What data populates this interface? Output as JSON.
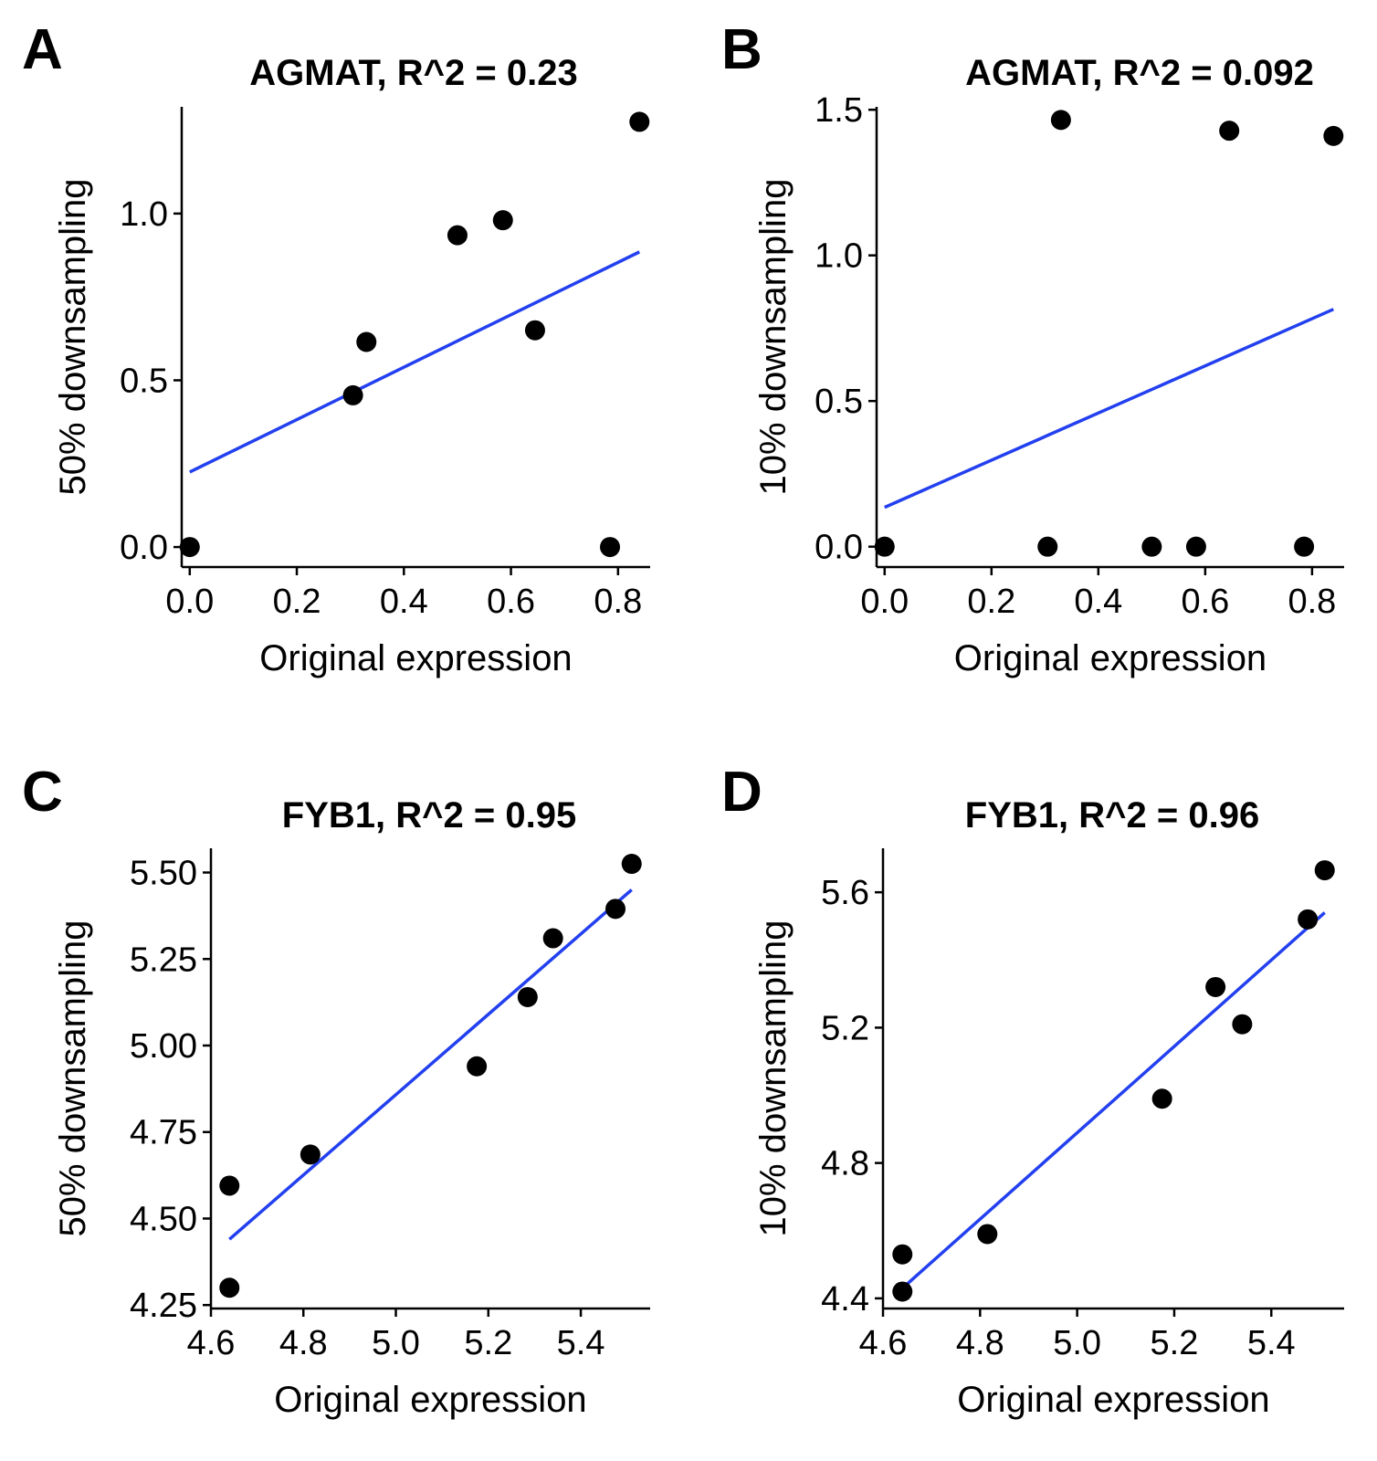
{
  "chart_data": [
    {
      "type": "scatter",
      "panel": "A",
      "title": "AGMAT, R^2 = 0.23",
      "xlabel": "Original expression",
      "ylabel": "50% downsampling",
      "xlim": [
        -0.015,
        0.86
      ],
      "ylim": [
        -0.06,
        1.32
      ],
      "xticks": [
        0,
        0.2,
        0.4,
        0.6,
        0.8
      ],
      "xtick_labels": [
        "0.0",
        "0.2",
        "0.4",
        "0.6",
        "0.8"
      ],
      "yticks": [
        0,
        0.5,
        1.0
      ],
      "ytick_labels": [
        "0.0",
        "0.5",
        "1.0"
      ],
      "points": [
        {
          "x": 0.0,
          "y": 0.0
        },
        {
          "x": 0.305,
          "y": 0.455
        },
        {
          "x": 0.33,
          "y": 0.615
        },
        {
          "x": 0.5,
          "y": 0.935
        },
        {
          "x": 0.585,
          "y": 0.98
        },
        {
          "x": 0.645,
          "y": 0.65
        },
        {
          "x": 0.785,
          "y": 0.0
        },
        {
          "x": 0.84,
          "y": 1.275
        }
      ],
      "fit": {
        "x": [
          0.0,
          0.84
        ],
        "y": [
          0.225,
          0.885
        ]
      }
    },
    {
      "type": "scatter",
      "panel": "B",
      "title": "AGMAT, R^2 = 0.092",
      "xlabel": "Original expression",
      "ylabel": "10% downsampling",
      "xlim": [
        -0.015,
        0.86
      ],
      "ylim": [
        -0.07,
        1.51
      ],
      "xticks": [
        0,
        0.2,
        0.4,
        0.6,
        0.8
      ],
      "xtick_labels": [
        "0.0",
        "0.2",
        "0.4",
        "0.6",
        "0.8"
      ],
      "yticks": [
        0,
        0.5,
        1.0,
        1.5
      ],
      "ytick_labels": [
        "0.0",
        "0.5",
        "1.0",
        "1.5"
      ],
      "points": [
        {
          "x": 0.0,
          "y": 0.0
        },
        {
          "x": 0.305,
          "y": 0.0
        },
        {
          "x": 0.33,
          "y": 1.465
        },
        {
          "x": 0.5,
          "y": 0.0
        },
        {
          "x": 0.583,
          "y": 0.0
        },
        {
          "x": 0.645,
          "y": 1.428
        },
        {
          "x": 0.785,
          "y": 0.0
        },
        {
          "x": 0.84,
          "y": 1.41
        }
      ],
      "fit": {
        "x": [
          0.0,
          0.84
        ],
        "y": [
          0.135,
          0.815
        ]
      }
    },
    {
      "type": "scatter",
      "panel": "C",
      "title": "FYB1, R^2 = 0.95",
      "xlabel": "Original expression",
      "ylabel": "50% downsampling",
      "xlim": [
        4.6,
        5.55
      ],
      "ylim": [
        4.24,
        5.57
      ],
      "xticks": [
        4.6,
        4.8,
        5.0,
        5.2,
        5.4
      ],
      "xtick_labels": [
        "4.6",
        "4.8",
        "5.0",
        "5.2",
        "5.4"
      ],
      "yticks": [
        4.25,
        4.5,
        4.75,
        5.0,
        5.25,
        5.5
      ],
      "ytick_labels": [
        "4.25",
        "4.50",
        "4.75",
        "5.00",
        "5.25",
        "5.50"
      ],
      "points": [
        {
          "x": 4.64,
          "y": 4.3
        },
        {
          "x": 4.64,
          "y": 4.595
        },
        {
          "x": 4.815,
          "y": 4.685
        },
        {
          "x": 5.175,
          "y": 4.94
        },
        {
          "x": 5.285,
          "y": 5.14
        },
        {
          "x": 5.34,
          "y": 5.31
        },
        {
          "x": 5.475,
          "y": 5.395
        },
        {
          "x": 5.51,
          "y": 5.525
        }
      ],
      "fit": {
        "x": [
          4.64,
          5.51
        ],
        "y": [
          4.44,
          5.45
        ]
      }
    },
    {
      "type": "scatter",
      "panel": "D",
      "title": "FYB1, R^2 = 0.96",
      "xlabel": "Original expression",
      "ylabel": "10% downsampling",
      "xlim": [
        4.6,
        5.55
      ],
      "ylim": [
        4.37,
        5.73
      ],
      "xticks": [
        4.6,
        4.8,
        5.0,
        5.2,
        5.4
      ],
      "xtick_labels": [
        "4.6",
        "4.8",
        "5.0",
        "5.2",
        "5.4"
      ],
      "yticks": [
        4.4,
        4.8,
        5.2,
        5.6
      ],
      "ytick_labels": [
        "4.4",
        "4.8",
        "5.2",
        "5.6"
      ],
      "points": [
        {
          "x": 4.64,
          "y": 4.42
        },
        {
          "x": 4.64,
          "y": 4.53
        },
        {
          "x": 4.815,
          "y": 4.59
        },
        {
          "x": 5.175,
          "y": 4.99
        },
        {
          "x": 5.285,
          "y": 5.32
        },
        {
          "x": 5.34,
          "y": 5.21
        },
        {
          "x": 5.475,
          "y": 5.52
        },
        {
          "x": 5.51,
          "y": 5.665
        }
      ],
      "fit": {
        "x": [
          4.64,
          5.51
        ],
        "y": [
          4.43,
          5.54
        ]
      }
    }
  ]
}
